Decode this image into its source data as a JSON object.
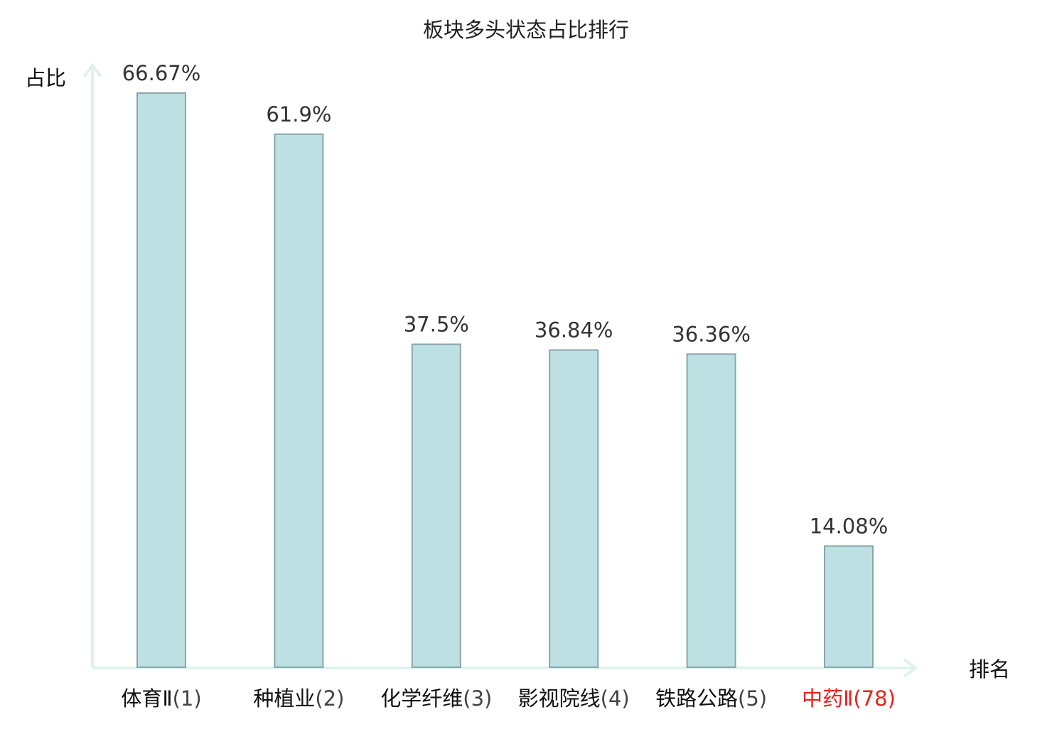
{
  "chart_data": {
    "type": "bar",
    "title": "板块多头状态占比排行",
    "ylabel": "占比",
    "xlabel": "排名",
    "ylim": [
      0,
      70
    ],
    "grid": false,
    "legend": "none",
    "categories": [
      {
        "name": "体育Ⅱ",
        "rank": "(1)"
      },
      {
        "name": "种植业",
        "rank": "(2)"
      },
      {
        "name": "化学纤维",
        "rank": "(3)"
      },
      {
        "name": "影视院线",
        "rank": "(4)"
      },
      {
        "name": "铁路公路",
        "rank": "(5)"
      },
      {
        "name": "中药Ⅱ",
        "rank": "(78)"
      }
    ],
    "values": [
      66.67,
      61.9,
      37.5,
      36.84,
      36.36,
      14.08
    ],
    "value_labels": [
      "66.67%",
      "61.9%",
      "37.5%",
      "36.84%",
      "36.36%",
      "14.08%"
    ],
    "highlight_index": 5,
    "colors": {
      "bar_fill": "#bde0e3",
      "bar_stroke": "#8aa6a9",
      "axis": "#def2ee",
      "highlight_text": "#e8201a"
    }
  }
}
